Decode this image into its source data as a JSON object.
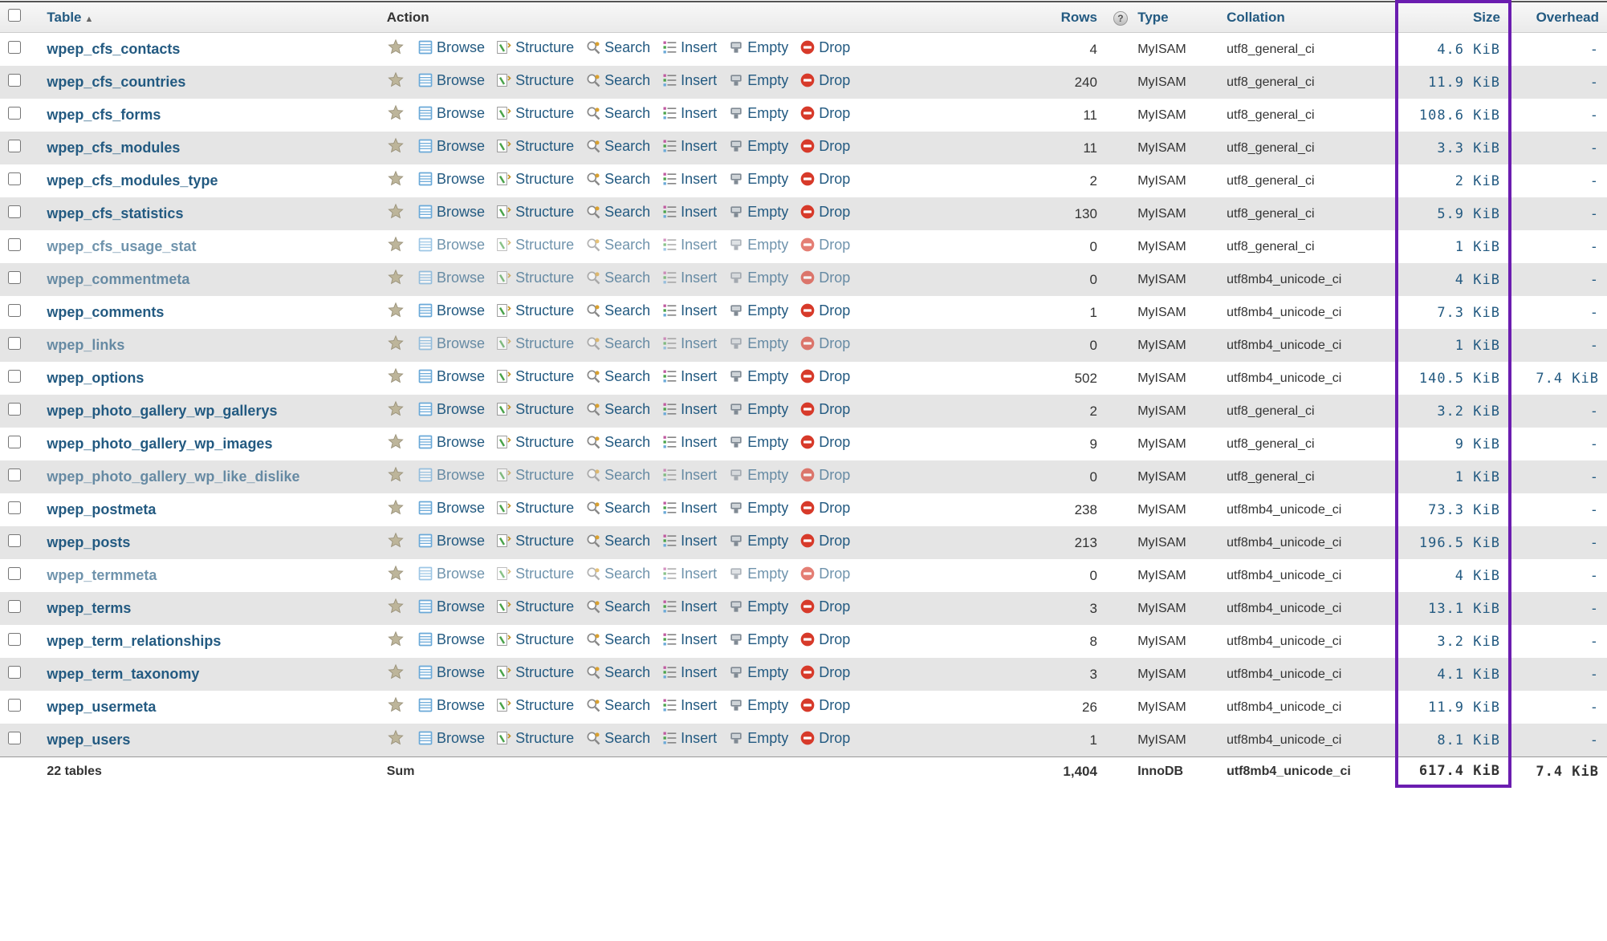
{
  "headers": {
    "table": "Table",
    "action": "Action",
    "rows": "Rows",
    "type": "Type",
    "collation": "Collation",
    "size": "Size",
    "overhead": "Overhead"
  },
  "actions": {
    "browse": "Browse",
    "structure": "Structure",
    "search": "Search",
    "insert": "Insert",
    "empty": "Empty",
    "drop": "Drop"
  },
  "colors": {
    "link": "#235a81",
    "highlight_border": "#6b1db0",
    "row_even": "#e5e5e5",
    "row_odd": "#ffffff",
    "icon_browse": "#6aa9d8",
    "icon_structure": "#4aa34a",
    "icon_search": "#d8a030",
    "icon_insert": "#c05aa0",
    "icon_empty": "#808a94",
    "icon_drop": "#d73a2a",
    "star": "#bdb59a"
  },
  "rows": [
    {
      "name": "wpep_cfs_contacts",
      "rows": "4",
      "type": "MyISAM",
      "coll": "utf8_general_ci",
      "size": "4.6 KiB",
      "over": "-",
      "dim": false
    },
    {
      "name": "wpep_cfs_countries",
      "rows": "240",
      "type": "MyISAM",
      "coll": "utf8_general_ci",
      "size": "11.9 KiB",
      "over": "-",
      "dim": false
    },
    {
      "name": "wpep_cfs_forms",
      "rows": "11",
      "type": "MyISAM",
      "coll": "utf8_general_ci",
      "size": "108.6 KiB",
      "over": "-",
      "dim": false
    },
    {
      "name": "wpep_cfs_modules",
      "rows": "11",
      "type": "MyISAM",
      "coll": "utf8_general_ci",
      "size": "3.3 KiB",
      "over": "-",
      "dim": false
    },
    {
      "name": "wpep_cfs_modules_type",
      "rows": "2",
      "type": "MyISAM",
      "coll": "utf8_general_ci",
      "size": "2 KiB",
      "over": "-",
      "dim": false
    },
    {
      "name": "wpep_cfs_statistics",
      "rows": "130",
      "type": "MyISAM",
      "coll": "utf8_general_ci",
      "size": "5.9 KiB",
      "over": "-",
      "dim": false
    },
    {
      "name": "wpep_cfs_usage_stat",
      "rows": "0",
      "type": "MyISAM",
      "coll": "utf8_general_ci",
      "size": "1 KiB",
      "over": "-",
      "dim": true
    },
    {
      "name": "wpep_commentmeta",
      "rows": "0",
      "type": "MyISAM",
      "coll": "utf8mb4_unicode_ci",
      "size": "4 KiB",
      "over": "-",
      "dim": true
    },
    {
      "name": "wpep_comments",
      "rows": "1",
      "type": "MyISAM",
      "coll": "utf8mb4_unicode_ci",
      "size": "7.3 KiB",
      "over": "-",
      "dim": false
    },
    {
      "name": "wpep_links",
      "rows": "0",
      "type": "MyISAM",
      "coll": "utf8mb4_unicode_ci",
      "size": "1 KiB",
      "over": "-",
      "dim": true
    },
    {
      "name": "wpep_options",
      "rows": "502",
      "type": "MyISAM",
      "coll": "utf8mb4_unicode_ci",
      "size": "140.5 KiB",
      "over": "7.4 KiB",
      "dim": false
    },
    {
      "name": "wpep_photo_gallery_wp_gallerys",
      "rows": "2",
      "type": "MyISAM",
      "coll": "utf8_general_ci",
      "size": "3.2 KiB",
      "over": "-",
      "dim": false
    },
    {
      "name": "wpep_photo_gallery_wp_images",
      "rows": "9",
      "type": "MyISAM",
      "coll": "utf8_general_ci",
      "size": "9 KiB",
      "over": "-",
      "dim": false
    },
    {
      "name": "wpep_photo_gallery_wp_like_dislike",
      "rows": "0",
      "type": "MyISAM",
      "coll": "utf8_general_ci",
      "size": "1 KiB",
      "over": "-",
      "dim": true
    },
    {
      "name": "wpep_postmeta",
      "rows": "238",
      "type": "MyISAM",
      "coll": "utf8mb4_unicode_ci",
      "size": "73.3 KiB",
      "over": "-",
      "dim": false
    },
    {
      "name": "wpep_posts",
      "rows": "213",
      "type": "MyISAM",
      "coll": "utf8mb4_unicode_ci",
      "size": "196.5 KiB",
      "over": "-",
      "dim": false
    },
    {
      "name": "wpep_termmeta",
      "rows": "0",
      "type": "MyISAM",
      "coll": "utf8mb4_unicode_ci",
      "size": "4 KiB",
      "over": "-",
      "dim": true
    },
    {
      "name": "wpep_terms",
      "rows": "3",
      "type": "MyISAM",
      "coll": "utf8mb4_unicode_ci",
      "size": "13.1 KiB",
      "over": "-",
      "dim": false
    },
    {
      "name": "wpep_term_relationships",
      "rows": "8",
      "type": "MyISAM",
      "coll": "utf8mb4_unicode_ci",
      "size": "3.2 KiB",
      "over": "-",
      "dim": false
    },
    {
      "name": "wpep_term_taxonomy",
      "rows": "3",
      "type": "MyISAM",
      "coll": "utf8mb4_unicode_ci",
      "size": "4.1 KiB",
      "over": "-",
      "dim": false
    },
    {
      "name": "wpep_usermeta",
      "rows": "26",
      "type": "MyISAM",
      "coll": "utf8mb4_unicode_ci",
      "size": "11.9 KiB",
      "over": "-",
      "dim": false
    },
    {
      "name": "wpep_users",
      "rows": "1",
      "type": "MyISAM",
      "coll": "utf8mb4_unicode_ci",
      "size": "8.1 KiB",
      "over": "-",
      "dim": false
    }
  ],
  "summary": {
    "label": "22 tables",
    "action": "Sum",
    "rows": "1,404",
    "type": "InnoDB",
    "coll": "utf8mb4_unicode_ci",
    "size": "617.4 KiB",
    "over": "7.4 KiB"
  }
}
